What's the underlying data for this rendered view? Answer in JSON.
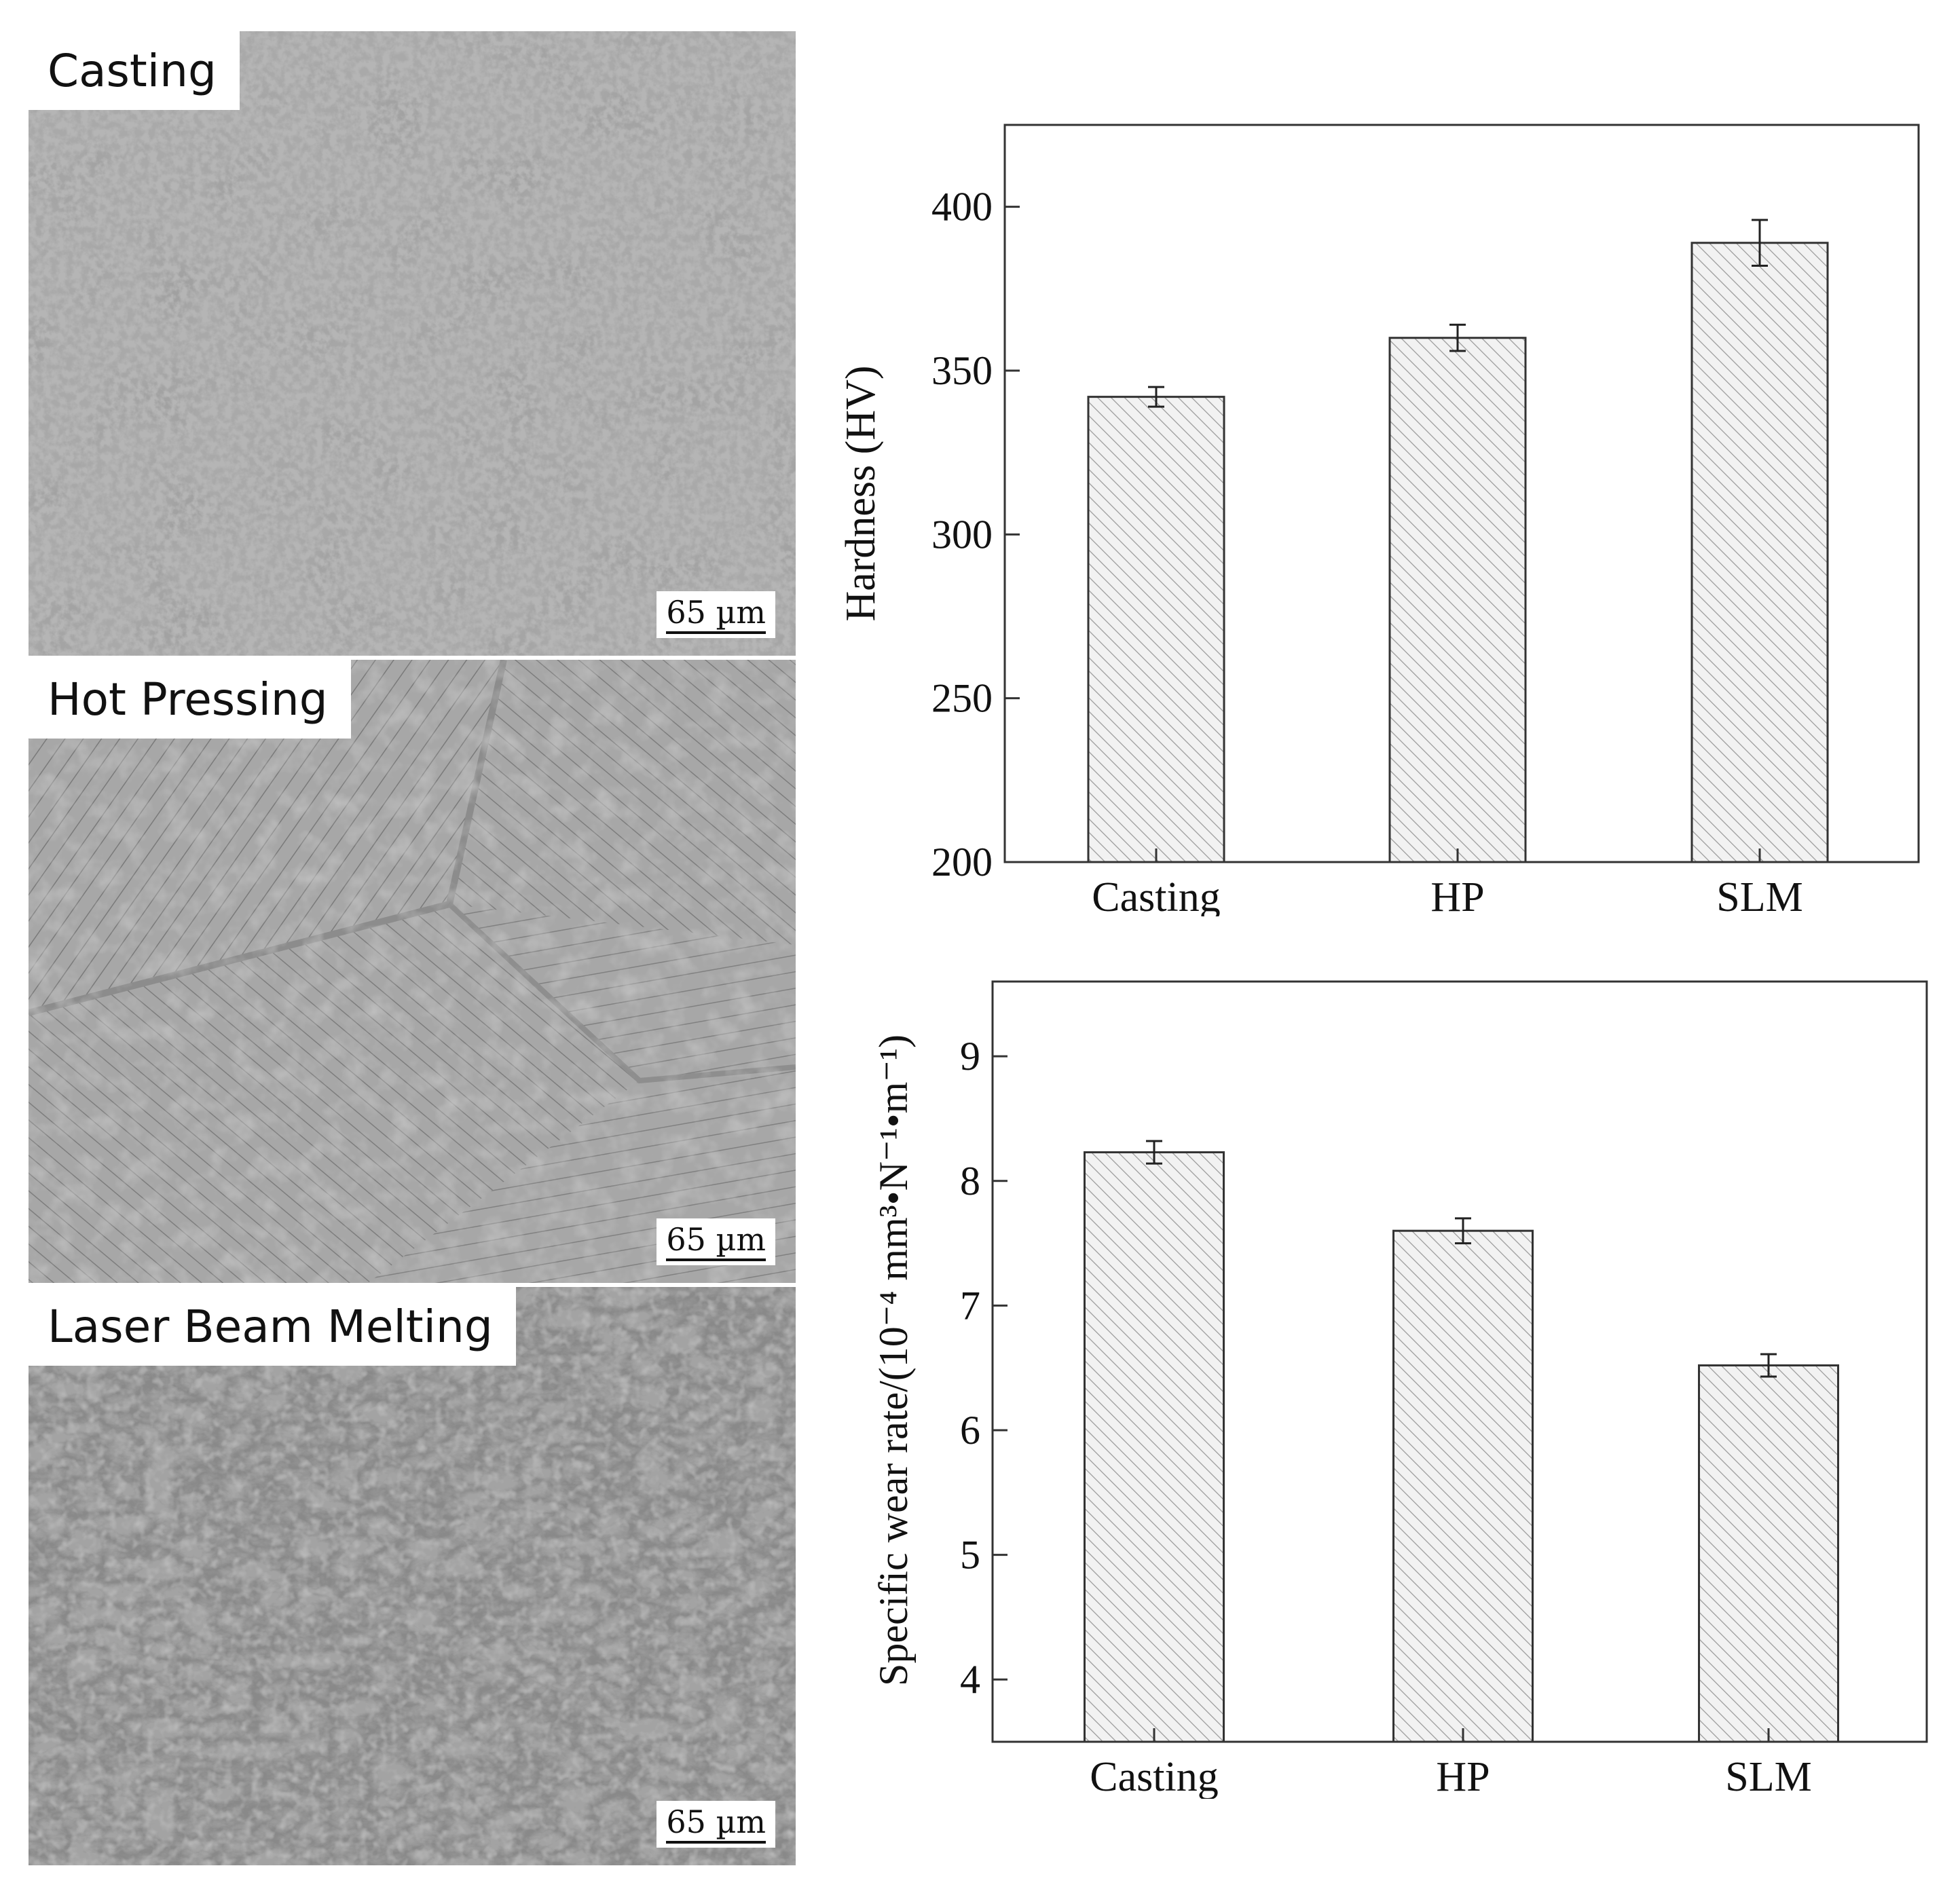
{
  "micrographs": [
    {
      "label": "Casting",
      "scale": "65 µm"
    },
    {
      "label": "Hot Pressing",
      "scale": "65 µm"
    },
    {
      "label": "Laser Beam Melting",
      "scale": "65 µm"
    }
  ],
  "chart_data": [
    {
      "type": "bar",
      "categories": [
        "Casting",
        "HP",
        "SLM"
      ],
      "values": [
        342,
        360,
        389
      ],
      "errors": [
        3,
        4,
        7
      ],
      "ylabel": "Hardness (HV)",
      "ylim": [
        200,
        425
      ],
      "yticks": [
        200,
        250,
        300,
        350,
        400
      ],
      "pattern": "diagonal-hatch"
    },
    {
      "type": "bar",
      "categories": [
        "Casting",
        "HP",
        "SLM"
      ],
      "values": [
        8.23,
        7.6,
        6.52
      ],
      "errors": [
        0.09,
        0.1,
        0.09
      ],
      "ylabel": "Specific wear rate/(10⁻⁴ mm³•N⁻¹•m⁻¹)",
      "ylim": [
        3.5,
        9.6
      ],
      "yticks": [
        4,
        5,
        6,
        7,
        8,
        9
      ],
      "pattern": "diagonal-hatch"
    }
  ]
}
